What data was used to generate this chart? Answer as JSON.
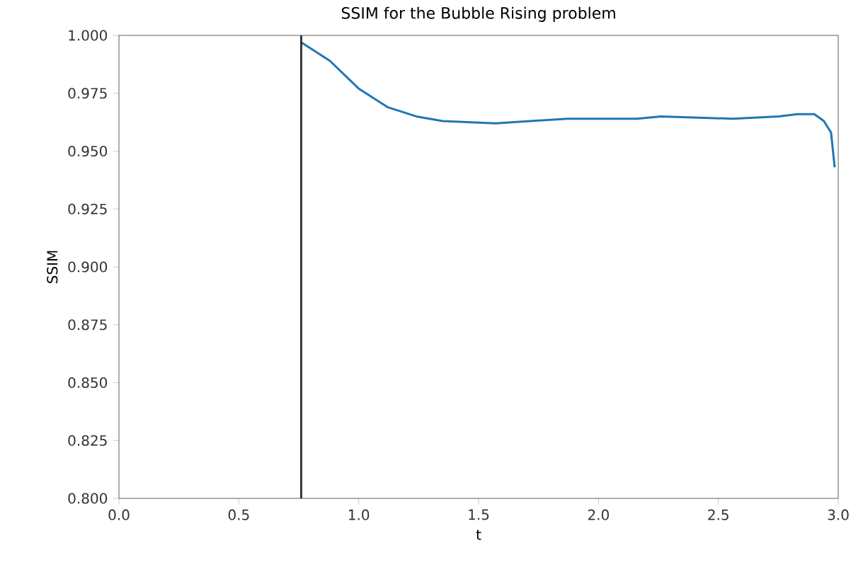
{
  "chart_data": {
    "type": "line",
    "title": "SSIM for the Bubble Rising problem",
    "xlabel": "t",
    "ylabel": "SSIM",
    "xlim": [
      0,
      3
    ],
    "ylim": [
      0.8,
      1.0
    ],
    "xticks": [
      {
        "value": 0,
        "label": "0.0"
      },
      0.5,
      {
        "value": 1,
        "label": "1.0"
      },
      1.5,
      {
        "value": 2,
        "label": "2.0"
      },
      2.5,
      {
        "value": 3,
        "label": "3.0"
      }
    ],
    "yticks": [
      {
        "value": 0.8,
        "label": "0.800"
      },
      0.825,
      {
        "value": 0.85,
        "label": "0.850"
      },
      0.875,
      {
        "value": 0.9,
        "label": "0.900"
      },
      0.925,
      {
        "value": 0.95,
        "label": "0.950"
      },
      0.975,
      {
        "value": 1.0,
        "label": "1.000"
      }
    ],
    "series": [
      {
        "color": "#1f77b4",
        "x": [
          0.76,
          0.88,
          1.0,
          1.12,
          1.24,
          1.35,
          1.57,
          1.87,
          2.16,
          2.26,
          2.56,
          2.75,
          2.83,
          2.9,
          2.94,
          2.97,
          2.985
        ],
        "values": [
          0.997,
          0.989,
          0.977,
          0.969,
          0.965,
          0.963,
          0.962,
          0.964,
          0.964,
          0.965,
          0.964,
          0.965,
          0.966,
          0.966,
          0.963,
          0.958,
          0.943
        ]
      }
    ],
    "ref_lines": [
      {
        "axis": "x",
        "value": 0.76,
        "color": "#333333"
      }
    ]
  }
}
